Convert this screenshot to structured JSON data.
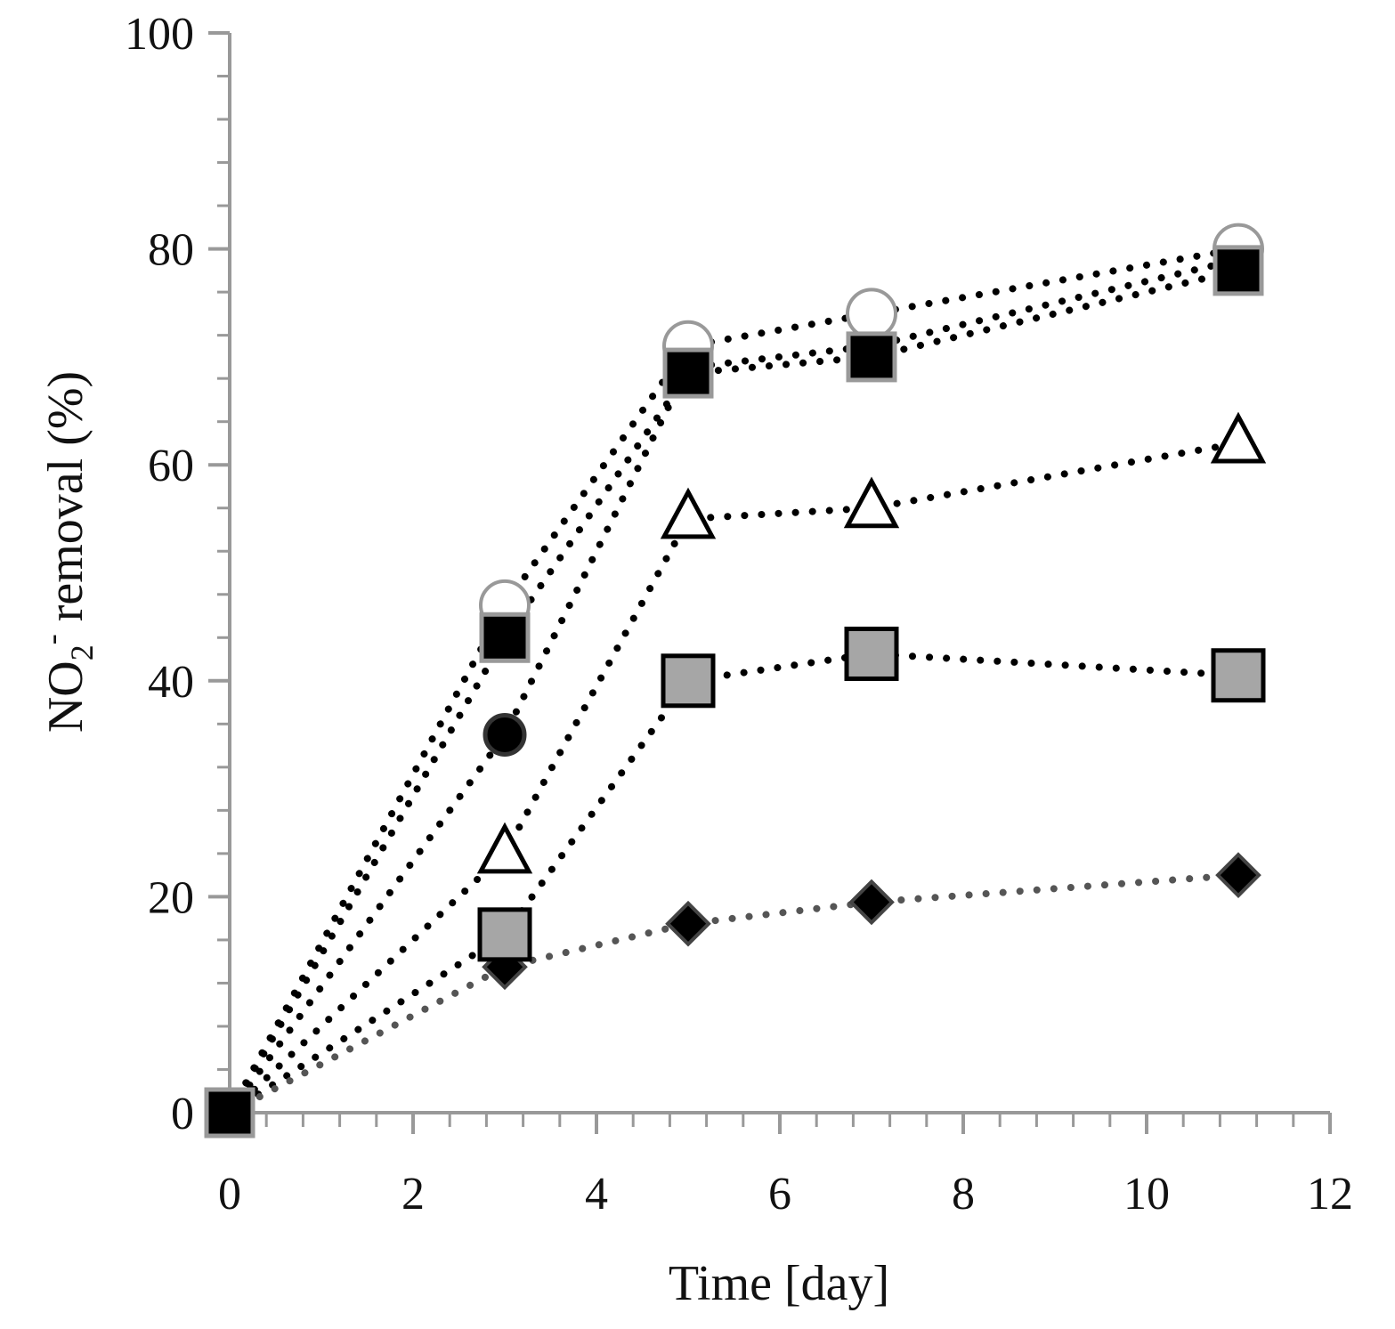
{
  "chart_data": {
    "type": "scatter",
    "title": "",
    "xlabel": "Time [day]",
    "ylabel": {
      "prefix": "NO",
      "subscript": "2",
      "superscript": "-",
      "suffix": " removal  (%)"
    },
    "xlim": [
      0,
      12
    ],
    "ylim": [
      0,
      100
    ],
    "x_ticks": [
      "0",
      "2",
      "4",
      "6",
      "8",
      "10",
      "12"
    ],
    "y_ticks": [
      "0",
      "20",
      "40",
      "60",
      "80",
      "100"
    ],
    "grid": false,
    "legend": "none",
    "series": [
      {
        "name": "open circle",
        "marker": "open-circle",
        "line_color": "#000000",
        "points": [
          [
            0,
            0
          ],
          [
            3,
            47
          ],
          [
            5,
            71
          ],
          [
            7,
            74
          ],
          [
            11,
            80
          ]
        ]
      },
      {
        "name": "black square",
        "marker": "black-square",
        "line_color": "#000000",
        "points": [
          [
            0,
            0
          ],
          [
            3,
            44
          ],
          [
            5,
            68.5
          ],
          [
            7,
            70
          ],
          [
            11,
            78
          ]
        ]
      },
      {
        "name": "black circle",
        "marker": "black-circle",
        "line_color": "#000000",
        "points": [
          [
            0,
            0
          ],
          [
            3,
            35
          ],
          [
            5,
            69
          ],
          [
            7,
            71
          ],
          [
            11,
            79
          ]
        ]
      },
      {
        "name": "open triangle",
        "marker": "open-triangle",
        "line_color": "#000000",
        "points": [
          [
            0,
            0
          ],
          [
            3,
            24
          ],
          [
            5,
            55
          ],
          [
            7,
            56
          ],
          [
            11,
            62
          ]
        ]
      },
      {
        "name": "gray square",
        "marker": "gray-square",
        "line_color": "#000000",
        "points": [
          [
            0,
            0
          ],
          [
            3,
            16.5
          ],
          [
            5,
            40
          ],
          [
            7,
            42.5
          ],
          [
            11,
            40.5
          ]
        ]
      },
      {
        "name": "black diamond",
        "marker": "black-diamond",
        "line_color": "#555555",
        "points": [
          [
            0,
            0
          ],
          [
            3,
            13.5
          ],
          [
            5,
            17.5
          ],
          [
            7,
            19.5
          ],
          [
            11,
            22
          ]
        ]
      }
    ],
    "colors": {
      "axis": "#999999",
      "gray_fill": "#a6a6a6",
      "marker_outline": "#999999"
    }
  }
}
